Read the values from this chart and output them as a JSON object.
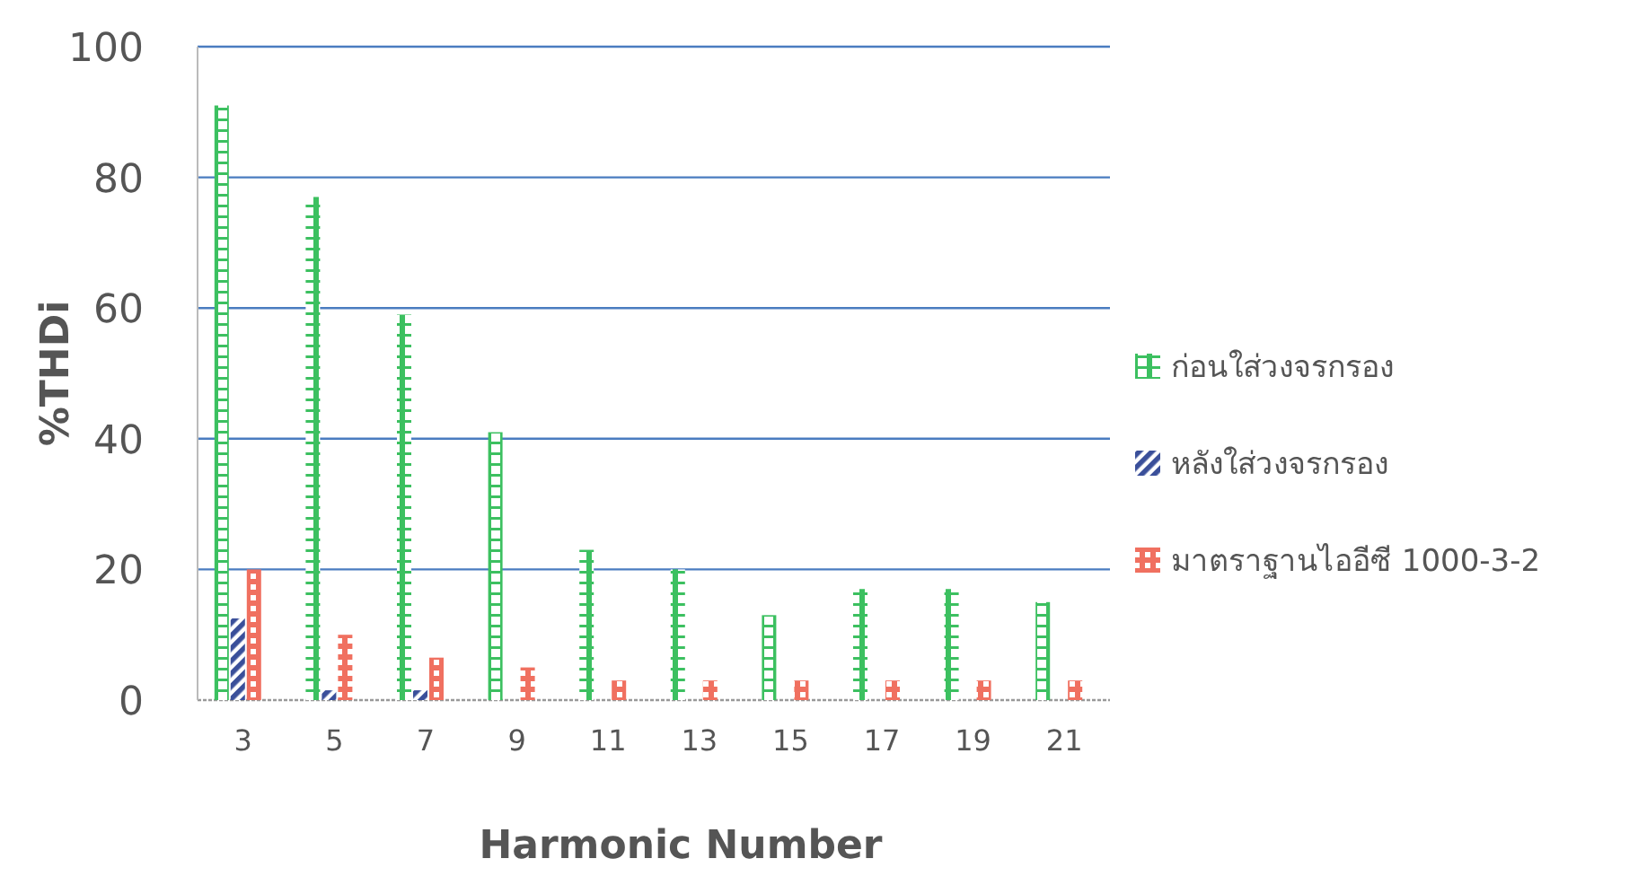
{
  "chart_data": {
    "type": "bar",
    "xlabel": "Harmonic Number",
    "ylabel": "%THDi",
    "categories": [
      "3",
      "5",
      "7",
      "9",
      "11",
      "13",
      "15",
      "17",
      "19",
      "21"
    ],
    "series": [
      {
        "name": "ก่อนใส่วงจรกรอง",
        "color": "#3cc060",
        "values": [
          91,
          77,
          59,
          41,
          23,
          20,
          13,
          17,
          17,
          15
        ]
      },
      {
        "name": "หลังใส่วงจรกรอง",
        "color": "#3a4f9a",
        "values": [
          12.5,
          1.5,
          1.5,
          0,
          0,
          0,
          0,
          0,
          0,
          0
        ]
      },
      {
        "name": "มาตราฐานไออีซี 1000-3-2",
        "color": "#f07060",
        "values": [
          20,
          10,
          6.5,
          5,
          3,
          3,
          3,
          3,
          3,
          3
        ]
      }
    ],
    "ylim": [
      0,
      100
    ],
    "yticks": [
      0,
      20,
      40,
      60,
      80,
      100
    ],
    "grid": "y",
    "legend": "right"
  }
}
